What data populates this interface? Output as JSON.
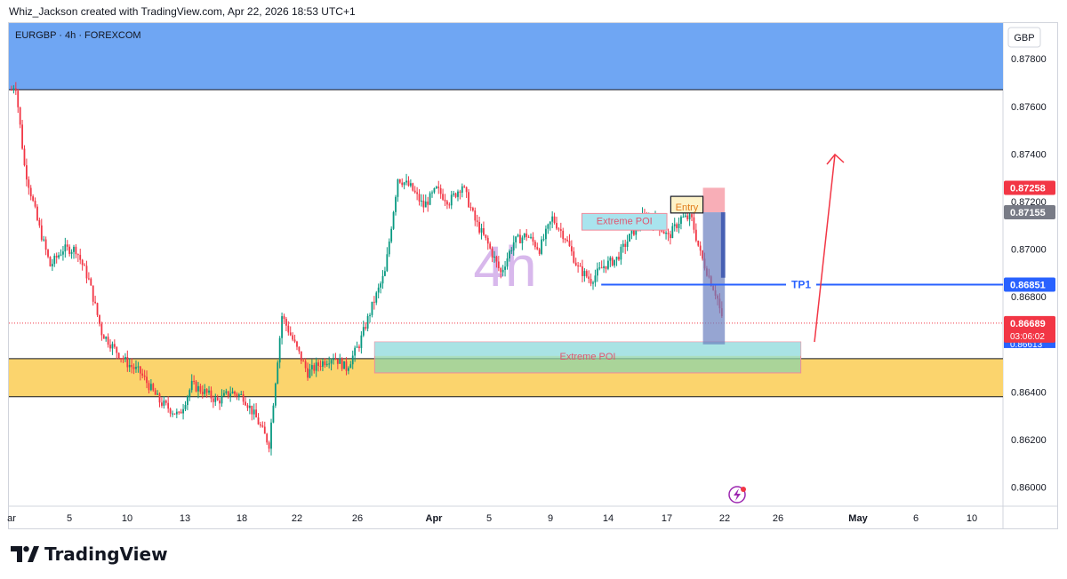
{
  "header": {
    "attribution": "Whiz_Jackson created with TradingView.com, Apr 22, 2026 18:53 UTC+1"
  },
  "chart_data": {
    "type": "candlestick",
    "symbol_label": "EURGBP · 4h · FOREXCOM",
    "currency": "GBP",
    "watermark": "4h",
    "y_ticks": [
      "0.87800",
      "0.87600",
      "0.87400",
      "0.87200",
      "0.87000",
      "0.86800",
      "0.86600",
      "0.86400",
      "0.86200",
      "0.86000"
    ],
    "ylim": [
      0.8592,
      0.8795
    ],
    "x_ticks": [
      "ar",
      "5",
      "10",
      "13",
      "18",
      "22",
      "26",
      "Apr",
      "5",
      "9",
      "14",
      "17",
      "22",
      "26",
      "May",
      "6",
      "10"
    ],
    "price_path": [
      [
        0.0,
        0.8767
      ],
      [
        0.3,
        0.877
      ],
      [
        1.0,
        0.8735
      ],
      [
        2.0,
        0.8712
      ],
      [
        3.0,
        0.8693
      ],
      [
        4.0,
        0.87
      ],
      [
        5.0,
        0.87
      ],
      [
        6.0,
        0.8687
      ],
      [
        7.0,
        0.8665
      ],
      [
        8.0,
        0.8658
      ],
      [
        9.0,
        0.8652
      ],
      [
        10.0,
        0.8648
      ],
      [
        11.5,
        0.8636
      ],
      [
        13.0,
        0.863
      ],
      [
        14.0,
        0.8643
      ],
      [
        15.0,
        0.864
      ],
      [
        16.0,
        0.8636
      ],
      [
        17.0,
        0.864
      ],
      [
        18.0,
        0.8638
      ],
      [
        19.0,
        0.8629
      ],
      [
        20.0,
        0.8618
      ],
      [
        21.0,
        0.8672
      ],
      [
        22.0,
        0.866
      ],
      [
        23.0,
        0.8648
      ],
      [
        24.0,
        0.8652
      ],
      [
        25.0,
        0.8655
      ],
      [
        26.0,
        0.865
      ],
      [
        27.0,
        0.866
      ],
      [
        28.0,
        0.8676
      ],
      [
        29.0,
        0.869
      ],
      [
        30.0,
        0.873
      ],
      [
        31.0,
        0.8726
      ],
      [
        32.0,
        0.8718
      ],
      [
        33.0,
        0.8725
      ],
      [
        34.0,
        0.872
      ],
      [
        35.0,
        0.8727
      ],
      [
        36.0,
        0.8712
      ],
      [
        37.0,
        0.8702
      ],
      [
        38.0,
        0.869
      ],
      [
        39.0,
        0.8703
      ],
      [
        40.0,
        0.8706
      ],
      [
        41.0,
        0.87
      ],
      [
        42.0,
        0.8713
      ],
      [
        43.0,
        0.8705
      ],
      [
        44.0,
        0.8692
      ],
      [
        45.0,
        0.8687
      ],
      [
        46.0,
        0.8693
      ],
      [
        47.0,
        0.8696
      ],
      [
        48.0,
        0.8705
      ],
      [
        49.0,
        0.8713
      ],
      [
        50.0,
        0.8712
      ],
      [
        51.0,
        0.8705
      ],
      [
        52.0,
        0.8713
      ],
      [
        52.8,
        0.8713
      ],
      [
        53.5,
        0.8698
      ],
      [
        54.2,
        0.8688
      ],
      [
        54.8,
        0.868
      ],
      [
        55.3,
        0.8667
      ]
    ],
    "annotations": {
      "extreme_poi_label": "Extreme POI",
      "entry_label": "Entry",
      "tp1_label": "TP1",
      "tp1_price": 0.86851,
      "upper_zone": [
        0.8767,
        0.8795
      ],
      "lower_zone": [
        0.8638,
        0.8654
      ],
      "poi_box_lower": [
        0.8648,
        0.8661
      ],
      "poi_box_upper": [
        0.8708,
        0.8715
      ],
      "stop_box": [
        0.87155,
        0.87258
      ],
      "target_box": [
        0.866,
        0.87155
      ],
      "current_price": 0.86689
    },
    "price_tags": [
      {
        "value": "0.87258",
        "color": "#f23645"
      },
      {
        "value": "0.87155",
        "color": "#787b86"
      },
      {
        "value": "0.86851",
        "color": "#2962ff"
      },
      {
        "value": "0.86689",
        "color": "#f23645"
      }
    ],
    "countdown": "03:06:02",
    "hidden_tag": "0.86613",
    "colors": {
      "up": "#089981",
      "down": "#f23645",
      "upper_zone": "#6fa6f3",
      "lower_zone": "#fbd46d",
      "tp_line": "#2962ff",
      "arrow": "#f23645"
    }
  },
  "footer": {
    "brand": "TradingView"
  }
}
